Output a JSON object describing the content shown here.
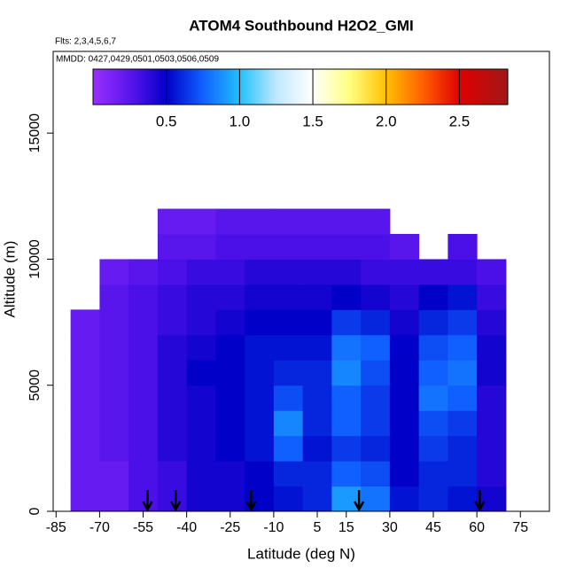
{
  "chart_data": {
    "type": "heatmap",
    "title": "ATOM4 Southbound H2O2_GMI",
    "subtitle": "Flts: 2,3,4,5,6,7",
    "annotation": "MMDD: 0427,0429,0501,0503,0506,0509",
    "xlabel": "Latitude (deg N)",
    "ylabel": "Altitude (m)",
    "xlim": [
      -86,
      85
    ],
    "ylim": [
      0,
      18240
    ],
    "xticks": [
      -85,
      -70,
      -55,
      -40,
      -25,
      -10,
      5,
      15,
      30,
      45,
      60,
      75
    ],
    "yticks": [
      0,
      5000,
      10000,
      15000
    ],
    "x_bins": [
      -80,
      -70,
      -60,
      -50,
      -40,
      -30,
      -20,
      -10,
      0,
      10,
      20,
      30,
      40,
      50,
      60,
      70
    ],
    "y_bins": [
      0,
      1000,
      2000,
      3000,
      4000,
      5000,
      6000,
      7000,
      8000,
      9000,
      10000,
      11000,
      12000
    ],
    "z": [
      [
        0.2,
        0.2,
        0.3,
        0.35,
        0.45,
        0.45,
        0.5,
        0.55,
        0.6,
        0.9,
        0.8,
        0.55,
        0.6,
        0.55,
        0.45
      ],
      [
        0.2,
        0.2,
        0.3,
        0.35,
        0.45,
        0.45,
        0.5,
        0.6,
        0.6,
        0.75,
        0.7,
        0.5,
        0.6,
        0.6,
        0.4
      ],
      [
        0.2,
        0.25,
        0.3,
        0.4,
        0.45,
        0.5,
        0.55,
        0.75,
        0.55,
        0.65,
        0.6,
        0.5,
        0.65,
        0.6,
        0.4
      ],
      [
        0.2,
        0.25,
        0.3,
        0.4,
        0.45,
        0.5,
        0.55,
        0.85,
        0.6,
        0.75,
        0.65,
        0.5,
        0.7,
        0.65,
        0.4
      ],
      [
        0.2,
        0.25,
        0.3,
        0.4,
        0.45,
        0.5,
        0.55,
        0.7,
        0.6,
        0.75,
        0.65,
        0.5,
        0.8,
        0.75,
        0.4
      ],
      [
        0.2,
        0.25,
        0.3,
        0.4,
        0.5,
        0.5,
        0.55,
        0.6,
        0.6,
        0.85,
        0.7,
        0.5,
        0.75,
        0.8,
        0.45
      ],
      [
        0.2,
        0.25,
        0.3,
        0.4,
        0.45,
        0.5,
        0.55,
        0.55,
        0.55,
        0.8,
        0.75,
        0.5,
        0.7,
        0.75,
        0.45
      ],
      [
        0.2,
        0.25,
        0.3,
        0.35,
        0.4,
        0.45,
        0.5,
        0.5,
        0.5,
        0.65,
        0.6,
        0.45,
        0.6,
        0.65,
        0.4
      ],
      [
        null,
        0.25,
        0.3,
        0.35,
        0.4,
        0.4,
        0.45,
        0.45,
        0.45,
        0.5,
        0.45,
        0.4,
        0.5,
        0.55,
        0.35
      ],
      [
        null,
        0.2,
        0.25,
        0.3,
        0.35,
        0.35,
        0.4,
        0.4,
        0.4,
        0.4,
        0.35,
        0.35,
        0.35,
        0.35,
        0.3
      ],
      [
        null,
        null,
        null,
        0.25,
        0.25,
        0.3,
        0.3,
        0.3,
        0.3,
        0.3,
        0.3,
        0.25,
        null,
        0.3,
        null
      ],
      [
        null,
        null,
        null,
        0.2,
        0.2,
        0.25,
        0.25,
        0.25,
        0.25,
        0.25,
        0.25,
        null,
        null,
        null,
        null
      ]
    ],
    "colorbar": {
      "lim": [
        0,
        2.83
      ],
      "ticks": [
        0.5,
        {
          "value": 1,
          "label": "1.0"
        },
        1.5,
        {
          "value": 2,
          "label": "2.0"
        },
        2.5
      ],
      "stops": [
        {
          "value": 0,
          "color": "#9b30ff"
        },
        {
          "value": 0.3,
          "color": "#4b10e8"
        },
        {
          "value": 0.5,
          "color": "#0000c8"
        },
        {
          "value": 0.75,
          "color": "#1060ff"
        },
        {
          "value": 1.0,
          "color": "#20c0ff"
        },
        {
          "value": 1.25,
          "color": "#c0e8ff"
        },
        {
          "value": 1.5,
          "color": "#ffffff"
        },
        {
          "value": 1.75,
          "color": "#ffff80"
        },
        {
          "value": 2.0,
          "color": "#ffc000"
        },
        {
          "value": 2.25,
          "color": "#ff6000"
        },
        {
          "value": 2.5,
          "color": "#e00000"
        },
        {
          "value": 2.83,
          "color": "#a01818"
        }
      ]
    },
    "arrows": [
      -53.5,
      -43.8,
      -17.8,
      19.4,
      61
    ]
  }
}
